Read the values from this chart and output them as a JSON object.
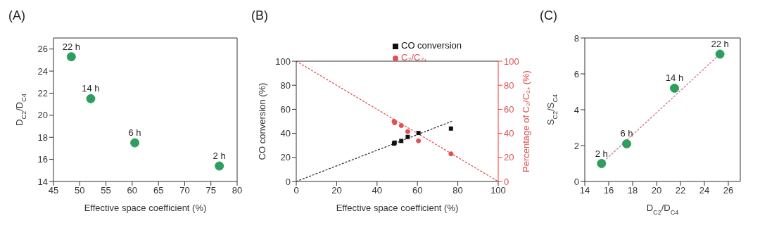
{
  "chart_data": [
    {
      "type": "scatter",
      "title": "(A)",
      "xlabel": "Effective space coefficient (%)",
      "ylabel": "D$_{C2}$/D$_{C4}$",
      "x": [
        48.4,
        52.1,
        60.5,
        76.6
      ],
      "values": [
        25.3,
        21.5,
        17.5,
        15.4
      ],
      "color": "#2e9e5e",
      "marker": "circle",
      "xlim": [
        45,
        80
      ],
      "xticks": [
        45,
        50,
        55,
        60,
        65,
        70,
        75,
        80
      ],
      "ylim": [
        14,
        27
      ],
      "yticks": [
        14,
        16,
        18,
        20,
        22,
        24,
        26
      ],
      "grid": false,
      "legend": false,
      "annotations": [
        {
          "text": "22 h",
          "x": 48.4,
          "y": 25.3
        },
        {
          "text": "14 h",
          "x": 52.1,
          "y": 21.5
        },
        {
          "text": "6 h",
          "x": 60.5,
          "y": 17.5
        },
        {
          "text": "2 h",
          "x": 76.6,
          "y": 15.4
        }
      ]
    },
    {
      "type": "scatter",
      "title": "(B)",
      "xlabel": "Effective space coefficient (%)",
      "ylabel": "CO conversion (%)",
      "y2label": "Percentage of C₂/C₂₊ (%)",
      "xlim": [
        0,
        100
      ],
      "xticks": [
        0,
        20,
        40,
        60,
        80,
        100
      ],
      "ylim": [
        0,
        100
      ],
      "yticks": [
        0,
        20,
        40,
        60,
        80,
        100
      ],
      "y2lim": [
        0,
        100
      ],
      "y2ticks": [
        0,
        20,
        40,
        60,
        80,
        100
      ],
      "grid": false,
      "legend": "top right",
      "series": [
        {
          "name": "CO conversion",
          "color": "#111111",
          "marker": "square",
          "x": [
            48.4,
            48.7,
            52,
            55.2,
            60.5,
            76.6
          ],
          "values": [
            31.5,
            32.3,
            33.7,
            37,
            40.3,
            44
          ]
        },
        {
          "name": "C₂/C₂₊",
          "color": "#e05050",
          "marker": "circle",
          "axis": "y2",
          "x": [
            48.4,
            48.7,
            52,
            55.2,
            60.5,
            76.6
          ],
          "values": [
            50,
            48.8,
            46.5,
            41.5,
            33.8,
            23
          ]
        },
        {
          "type": "line",
          "color": "#333333",
          "line_style": "dotted",
          "x": [
            0,
            77
          ],
          "values": [
            0,
            50
          ]
        },
        {
          "type": "line",
          "color": "#e05050",
          "line_style": "dotted",
          "axis": "y2",
          "x": [
            0,
            100
          ],
          "values": [
            100,
            0
          ]
        }
      ]
    },
    {
      "type": "scatter",
      "title": "(C)",
      "xlabel": "D$_{C2}$/D$_{C4}$",
      "ylabel": "S$_{C2}$/S$_{C4}$",
      "xlim": [
        14,
        27
      ],
      "xticks": [
        14,
        16,
        18,
        20,
        22,
        24,
        26
      ],
      "ylim": [
        0,
        8
      ],
      "yticks": [
        0,
        2,
        4,
        6,
        8
      ],
      "grid": false,
      "legend": false,
      "series": [
        {
          "color": "#2e9e5e",
          "marker": "circle",
          "x": [
            15.4,
            17.5,
            21.5,
            25.3
          ],
          "values": [
            1.0,
            2.1,
            5.2,
            7.1
          ]
        },
        {
          "type": "line",
          "color": "#d0708a",
          "line_style": "dotted",
          "x": [
            15.4,
            25.3
          ],
          "values": [
            1.0,
            7.1
          ]
        }
      ],
      "annotations": [
        {
          "text": "2 h",
          "x": 15.4,
          "y": 1.0
        },
        {
          "text": "6 h",
          "x": 17.5,
          "y": 2.1
        },
        {
          "text": "14 h",
          "x": 21.5,
          "y": 5.2
        },
        {
          "text": "22 h",
          "x": 25.3,
          "y": 7.1
        }
      ]
    }
  ]
}
